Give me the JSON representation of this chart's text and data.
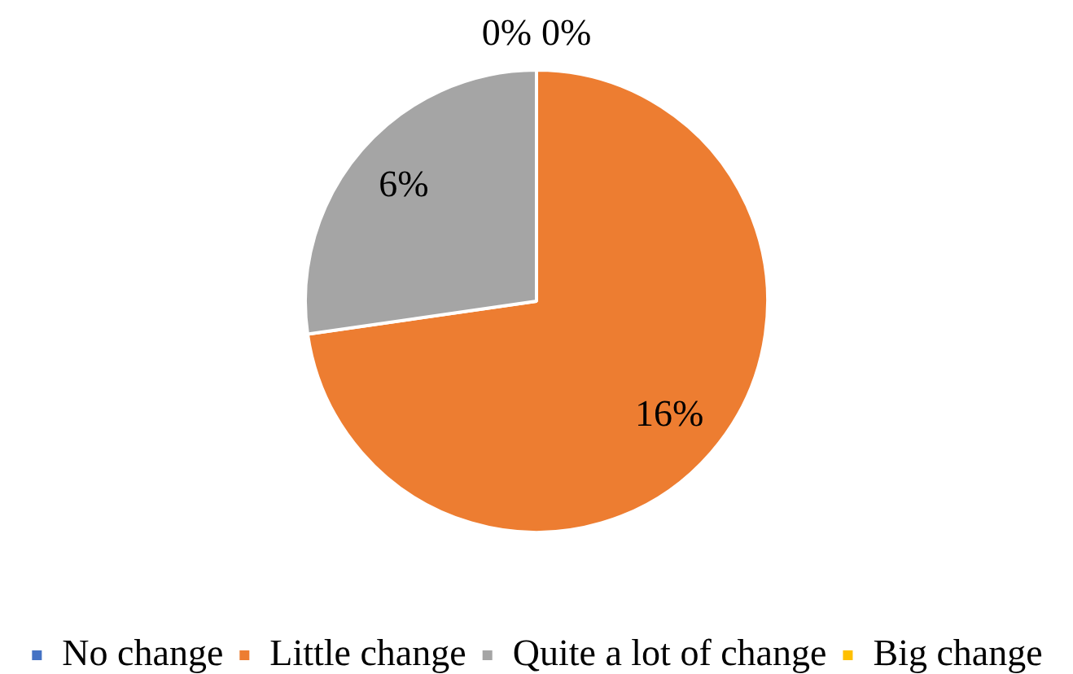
{
  "chart_data": {
    "type": "pie",
    "categories": [
      "No change",
      "Little change",
      "Quite a lot of change",
      "Big change"
    ],
    "values": [
      0,
      16,
      6,
      0
    ],
    "colors": [
      "#4472c4",
      "#ed7d31",
      "#a5a5a5",
      "#ffc000"
    ],
    "value_labels": [
      "0%",
      "16%",
      "6%",
      "0%"
    ],
    "legend": "bottom"
  }
}
